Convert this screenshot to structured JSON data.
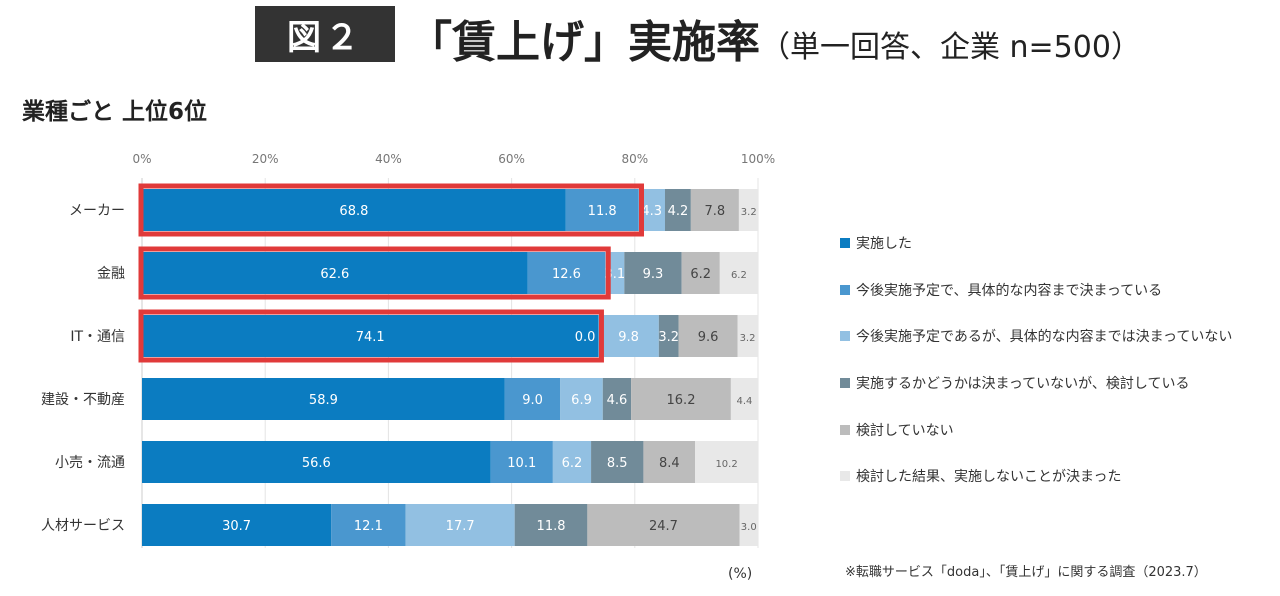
{
  "header": {
    "badge": "図２",
    "title": "「賃上げ」実施率",
    "subtitle_paren": "（単一回答、企業 n=500）"
  },
  "section_title": "業種ごと 上位6位",
  "footnote": "※転職サービス「doda」、「賃上げ」に関する調査（2023.7）",
  "chart_data": {
    "type": "bar",
    "orientation": "horizontal-stacked-100",
    "title": "「賃上げ」実施率",
    "xlabel": "(%)",
    "xlim": [
      0,
      100
    ],
    "xticks": [
      "0%",
      "20%",
      "40%",
      "60%",
      "80%",
      "100%"
    ],
    "categories": [
      "メーカー",
      "金融",
      "IT・通信",
      "建設・不動産",
      "小売・流通",
      "人材サービス"
    ],
    "highlighted_rows": [
      0,
      1,
      2
    ],
    "series": [
      {
        "name": "実施した",
        "color": "#0b7cc1",
        "label_color": "#ffffff",
        "values": [
          68.8,
          62.6,
          74.1,
          58.9,
          56.6,
          30.7
        ]
      },
      {
        "name": "今後実施予定で、具体的な内容まで決まっている",
        "color": "#4a97cf",
        "label_color": "#ffffff",
        "values": [
          11.8,
          12.6,
          0.0,
          9.0,
          10.1,
          12.1
        ]
      },
      {
        "name": "今後実施予定であるが、具体的な内容までは決まっていない",
        "color": "#92c0e2",
        "label_color": "#ffffff",
        "values": [
          4.3,
          3.1,
          9.8,
          6.9,
          6.2,
          17.7
        ]
      },
      {
        "name": "実施するかどうかは決まっていないが、検討している",
        "color": "#718b99",
        "label_color": "#ffffff",
        "values": [
          4.2,
          9.3,
          3.2,
          4.6,
          8.5,
          11.8
        ]
      },
      {
        "name": "検討していない",
        "color": "#bcbcbc",
        "label_color": "#444444",
        "values": [
          7.8,
          6.2,
          9.6,
          16.2,
          8.4,
          24.7
        ]
      },
      {
        "name": "検討した結果、実施しないことが決まった",
        "color": "#e8e8e8",
        "label_color": "#666666",
        "values": [
          3.2,
          6.2,
          3.2,
          4.4,
          10.2,
          3.0
        ]
      }
    ],
    "grid": true,
    "legend": "right",
    "highlight_color": "#e03a3a"
  }
}
